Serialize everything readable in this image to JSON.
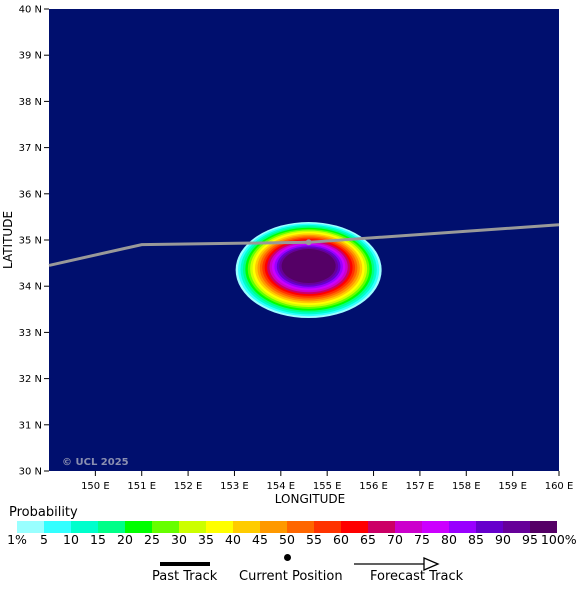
{
  "map": {
    "xlabel": "LONGITUDE",
    "ylabel": "LATITUDE",
    "copyright": "© UCL 2025",
    "lon_range": [
      149,
      160
    ],
    "lat_range": [
      30,
      40
    ],
    "x_ticks": [
      "150 E",
      "151 E",
      "152 E",
      "153 E",
      "154 E",
      "155 E",
      "156 E",
      "157 E",
      "158 E",
      "159 E",
      "160 E"
    ],
    "y_ticks": [
      "30 N",
      "31 N",
      "32 N",
      "33 N",
      "34 N",
      "35 N",
      "36 N",
      "37 N",
      "38 N",
      "39 N",
      "40 N"
    ],
    "background_color": "#000f6e",
    "track_color": "#999999",
    "current_position": [
      154.6,
      34.95
    ],
    "track_points": [
      [
        149,
        34.45
      ],
      [
        151,
        34.9
      ],
      [
        154.6,
        34.95
      ],
      [
        160,
        35.33
      ]
    ]
  },
  "legend": {
    "title": "Probability",
    "labels": [
      "1%",
      "5",
      "10",
      "15",
      "20",
      "25",
      "30",
      "35",
      "40",
      "45",
      "50",
      "55",
      "60",
      "65",
      "70",
      "75",
      "80",
      "85",
      "90",
      "95",
      "100%"
    ],
    "colors": [
      "#99ffff",
      "#33ffff",
      "#00ffcc",
      "#00ff88",
      "#00ff00",
      "#66ff00",
      "#ccff00",
      "#ffff00",
      "#ffcc00",
      "#ff9900",
      "#ff6600",
      "#ff3300",
      "#ff0000",
      "#cc0066",
      "#cc00cc",
      "#cc00ff",
      "#9900ff",
      "#6600cc",
      "#660099",
      "#550066"
    ]
  },
  "key": {
    "past_track": "Past Track",
    "current_position": "Current Position",
    "forecast_track": "Forecast Track"
  }
}
